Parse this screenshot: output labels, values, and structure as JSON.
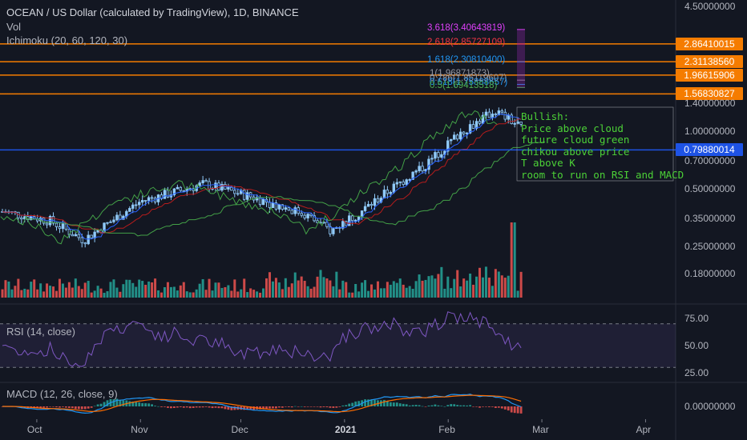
{
  "header": {
    "title": "OCEAN / US Dollar (calculated by TradingView), 1D, BINANCE",
    "vol_label": "Vol",
    "ichimoku_label": "Ichimoku (20, 60, 120, 30)",
    "rsi_label": "RSI (14, close)",
    "macd_label": "MACD (12, 26, close, 9)"
  },
  "price_axis": {
    "ticks": [
      "4.50000000",
      "1.40000000",
      "1.00000000",
      "0.70000000",
      "0.50000000",
      "0.35000000",
      "0.25000000",
      "0.18000000"
    ]
  },
  "price_tags": [
    {
      "value": "2.86410015",
      "color": "#f57c00"
    },
    {
      "value": "2.31138560",
      "color": "#f57c00"
    },
    {
      "value": "1.96615906",
      "color": "#f57c00"
    },
    {
      "value": "1.56830827",
      "color": "#f57c00"
    },
    {
      "value": "0.79880014",
      "color": "#1e53e5"
    }
  ],
  "fib_levels": [
    {
      "label": "3.618(3.40643819)",
      "color": "#e040fb"
    },
    {
      "label": "2.618(2.85727109)",
      "color": "#f23645"
    },
    {
      "label": "1.618(2.30810400)",
      "color": "#2196f3"
    },
    {
      "label": "1(1.96871873)",
      "color": "#9598a1"
    },
    {
      "label": "0.786(1.85119607)",
      "color": "#9598a1"
    },
    {
      "label": "0.618(1.75888657)",
      "color": "#2196f3"
    },
    {
      "label": "0.5(1.69413518)",
      "color": "#4caf50"
    }
  ],
  "annotation": {
    "lines": [
      "Bullish:",
      "Price above cloud",
      "future cloud green",
      "chikou above price",
      "T above K",
      "room to run on RSI and MACD"
    ]
  },
  "rsi_axis": {
    "ticks": [
      "75.00",
      "50.00",
      "25.00"
    ]
  },
  "macd_axis": {
    "ticks": [
      "0.00000000"
    ]
  },
  "x_axis": {
    "labels": [
      {
        "text": "Oct",
        "bold": false
      },
      {
        "text": "Nov",
        "bold": false
      },
      {
        "text": "Dec",
        "bold": false
      },
      {
        "text": "2021",
        "bold": true
      },
      {
        "text": "Feb",
        "bold": false
      },
      {
        "text": "Mar",
        "bold": false
      },
      {
        "text": "Apr",
        "bold": false
      }
    ]
  },
  "colors": {
    "background": "#131722",
    "candle": "#90caf9",
    "tenkan": "#2962ff",
    "kijun": "#b71c1c",
    "chikou": "#43a047",
    "rsi": "#7e57c2",
    "macd": "#2196f3",
    "signal": "#ff6d00",
    "vol_up": "#26a69a",
    "vol_down": "#ef5350"
  },
  "chart_data": {
    "type": "candlestick",
    "title": "OCEAN / US Dollar (calculated by TradingView), 1D, BINANCE",
    "scale": "log",
    "x_range": [
      "2020-09-20",
      "2021-04-10"
    ],
    "y_range": [
      0.18,
      4.5
    ],
    "last_price": 1.56830827,
    "approx_close_path": [
      {
        "date": "2020-09-21",
        "close": 0.38
      },
      {
        "date": "2020-10-05",
        "close": 0.34
      },
      {
        "date": "2020-10-15",
        "close": 0.27
      },
      {
        "date": "2020-11-01",
        "close": 0.43
      },
      {
        "date": "2020-11-20",
        "close": 0.53
      },
      {
        "date": "2020-12-05",
        "close": 0.45
      },
      {
        "date": "2020-12-20",
        "close": 0.37
      },
      {
        "date": "2020-12-28",
        "close": 0.3
      },
      {
        "date": "2021-01-05",
        "close": 0.37
      },
      {
        "date": "2021-01-15",
        "close": 0.5
      },
      {
        "date": "2021-01-25",
        "close": 0.66
      },
      {
        "date": "2021-02-05",
        "close": 1.0
      },
      {
        "date": "2021-02-15",
        "close": 1.28
      },
      {
        "date": "2021-02-28",
        "close": 0.92
      },
      {
        "date": "2021-03-06",
        "close": 1.55
      },
      {
        "date": "2021-03-08",
        "close": 1.5683
      }
    ],
    "rsi_range": [
      25,
      75
    ],
    "rsi_levels": [
      70,
      30
    ],
    "grid": false
  }
}
